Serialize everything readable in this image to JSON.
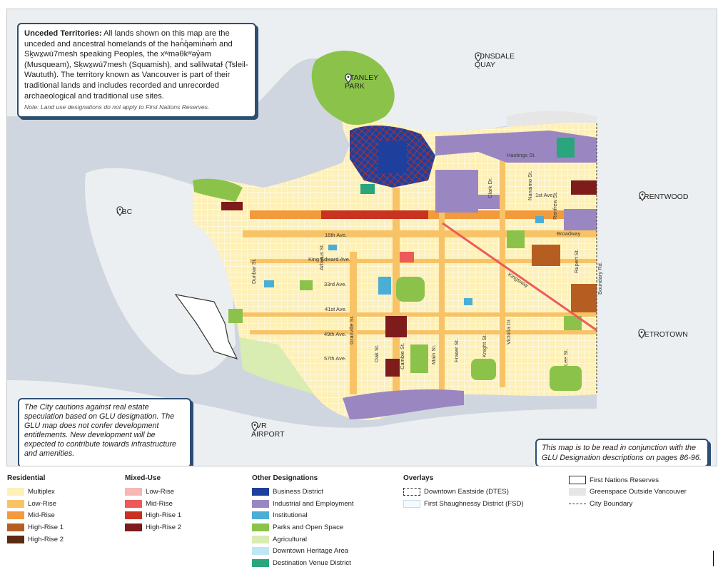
{
  "callouts": {
    "unceded_title": "Unceded Territories:",
    "unceded_body": "All lands shown on this map are the unceded and ancestral homelands of the hən̓q̓əmin̓əm̓ and Sḵwx̱wú7mesh speaking Peoples, the xʷməθkʷəy̓əm (Musqueam), Sḵwx̱wú7mesh (Squamish), and səlilwətaɬ (Tsleil-Waututh). The territory known as Vancouver is part of their traditional lands and includes recorded and unrecorded archaeological and traditional use sites.",
    "unceded_note": "Note: Land use designations do not apply to First Nations Reserves.",
    "caution": "The City cautions against real estate speculation based on GLU designation. The GLU map does not confer development entitlements. New development will be expected to contribute towards infrastructure and amenities.",
    "read_with": "This map is to be read in conjunction with the GLU Designation descriptions on pages 86-96."
  },
  "places": {
    "lonsdale": "LONSDALE QUAY",
    "stanley": "STANLEY PARK",
    "ubc": "UBC",
    "brentwood": "BRENTWOOD",
    "metrotown": "METROTOWN",
    "yvr": "YVR AIRPORT"
  },
  "streets": {
    "hastings": "Hastings St.",
    "first_ave": "1st Ave.",
    "broadway": "Broadway",
    "sixteenth": "16th Ave.",
    "king_edward": "King Edward Ave.",
    "thirtythird": "33rd Ave.",
    "fortyfirst": "41st Ave.",
    "fortyninth": "49th Ave.",
    "fiftyseventh": "57th Ave.",
    "arbutus": "Arbutus St.",
    "dunbar": "Dunbar St.",
    "granville": "Granville St.",
    "oak": "Oak St.",
    "cambie": "Cambie St.",
    "main": "Main St.",
    "fraser": "Fraser St.",
    "knight": "Knight St.",
    "victoria": "Victoria Dr.",
    "nanaimo": "Nanaimo St.",
    "renfrew": "Renfrew St.",
    "rupert": "Rupert St.",
    "boundary": "Boundary Rd.",
    "clark": "Clark Dr.",
    "kingsway": "Kingsway",
    "lee": "Lee St."
  },
  "legend": {
    "residential": {
      "title": "Residential",
      "items": [
        {
          "label": "Multiplex",
          "color": "#fdf0b8"
        },
        {
          "label": "Low-Rise",
          "color": "#f8c366"
        },
        {
          "label": "Mid-Rise",
          "color": "#f39a3c"
        },
        {
          "label": "High-Rise 1",
          "color": "#b65e22"
        },
        {
          "label": "High-Rise 2",
          "color": "#5c2a12"
        }
      ]
    },
    "mixed_use": {
      "title": "Mixed-Use",
      "items": [
        {
          "label": "Low-Rise",
          "color": "#f7b7b7"
        },
        {
          "label": "Mid-Rise",
          "color": "#ec5a5a"
        },
        {
          "label": "High-Rise 1",
          "color": "#c8321f"
        },
        {
          "label": "High-Rise 2",
          "color": "#7e1c1c"
        }
      ]
    },
    "other": {
      "title": "Other Designations",
      "items": [
        {
          "label": "Business District",
          "color": "#1f3f9c"
        },
        {
          "label": "Industrial and Employment",
          "color": "#9a87c2"
        },
        {
          "label": "Institutional",
          "color": "#4baed4"
        },
        {
          "label": "Parks and Open Space",
          "color": "#8bc34a"
        },
        {
          "label": "Agricultural",
          "color": "#d9ecb1"
        },
        {
          "label": "Downtown Heritage Area",
          "color": "#bfe6f5"
        },
        {
          "label": "Destination Venue District",
          "color": "#2aa57c"
        }
      ]
    },
    "overlays": {
      "title": "Overlays",
      "dtes": "Downtown Eastside (DTES)",
      "fsd": "First Shaughnessy District (FSD)"
    },
    "misc": {
      "fnr": "First Nations Reserves",
      "greenspace": "Greenspace Outside Vancouver",
      "greenspace_color": "#e6e6e6",
      "boundary": "City Boundary"
    }
  }
}
